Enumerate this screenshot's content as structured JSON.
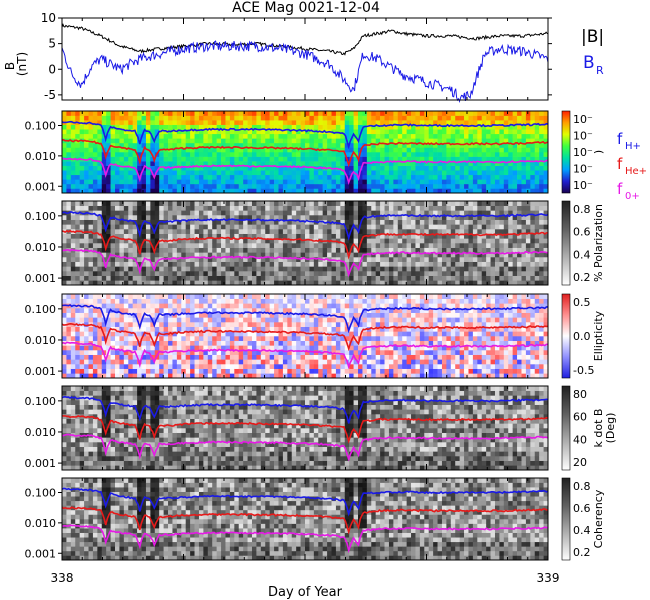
{
  "title": "ACE Mag 0021-12-04",
  "xlabel": "Day of Year",
  "x_ticks": [
    "338",
    "339"
  ],
  "chart_data": [
    {
      "type": "line",
      "panel": "magnetic-field",
      "ylabel": "B",
      "yunit": "(nT)",
      "ylim": [
        -6,
        10
      ],
      "y_ticks": [
        "10",
        "5",
        "0",
        "-5"
      ],
      "series": [
        {
          "name": "|B|",
          "color": "#000000",
          "x": [
            338.0,
            338.04,
            338.08,
            338.12,
            338.16,
            338.2,
            338.25,
            338.3,
            338.35,
            338.4,
            338.45,
            338.5,
            338.55,
            338.58,
            338.6,
            338.62,
            338.65,
            338.68,
            338.7,
            338.75,
            338.8,
            338.85,
            338.9,
            338.95,
            339.0
          ],
          "values": [
            8.5,
            8.0,
            6.5,
            4.5,
            3.5,
            4.0,
            4.5,
            5.0,
            4.8,
            5.0,
            4.5,
            4.0,
            3.5,
            3.0,
            4.0,
            6.5,
            7.0,
            7.5,
            7.0,
            6.5,
            6.5,
            6.0,
            6.5,
            6.5,
            7.0
          ]
        },
        {
          "name": "B_R",
          "color": "#1a1ae6",
          "x": [
            338.0,
            338.02,
            338.04,
            338.06,
            338.08,
            338.12,
            338.16,
            338.2,
            338.25,
            338.3,
            338.35,
            338.4,
            338.45,
            338.5,
            338.55,
            338.58,
            338.6,
            338.62,
            338.65,
            338.7,
            338.75,
            338.8,
            338.82,
            338.84,
            338.87,
            338.9,
            338.95,
            339.0
          ],
          "values": [
            4.0,
            -1.0,
            -3.0,
            0.5,
            2.0,
            0.0,
            2.0,
            3.0,
            4.0,
            4.5,
            4.5,
            4.5,
            4.0,
            3.0,
            1.0,
            -2.0,
            -4.0,
            3.0,
            2.0,
            -1.0,
            -2.5,
            -4.0,
            -5.5,
            -5.0,
            3.0,
            4.0,
            3.5,
            2.0
          ]
        }
      ]
    },
    {
      "type": "heatmap",
      "panel": "power-spectrum",
      "ylim": [
        0.0006,
        0.3
      ],
      "yscale": "log",
      "y_ticks": [
        "0.100",
        "0.010",
        "0.001"
      ],
      "colorbar_ticks": [
        "10⁻",
        "10⁻",
        "10⁻",
        "10⁻",
        "10⁻"
      ],
      "colorbar_label": ")",
      "colormap": "rainbow"
    },
    {
      "type": "heatmap",
      "panel": "polarization",
      "ylim": [
        0.0006,
        0.3
      ],
      "yscale": "log",
      "y_ticks": [
        "0.100",
        "0.010",
        "0.001"
      ],
      "colorbar_label": "% Polarization",
      "colorbar_ticks": [
        "0.8",
        "0.6",
        "0.4",
        "0.2"
      ],
      "colormap": "gray"
    },
    {
      "type": "heatmap",
      "panel": "ellipticity",
      "ylim": [
        0.0006,
        0.3
      ],
      "yscale": "log",
      "y_ticks": [
        "0.100",
        "0.010",
        "0.001"
      ],
      "colorbar_label": "Ellipticity",
      "colorbar_ticks": [
        "0.5",
        "0.0",
        "-0.5"
      ],
      "colormap": "blue-white-red"
    },
    {
      "type": "heatmap",
      "panel": "k-dot-b",
      "ylim": [
        0.0006,
        0.3
      ],
      "yscale": "log",
      "y_ticks": [
        "0.100",
        "0.010",
        "0.001"
      ],
      "colorbar_label": "k dot B",
      "colorbar_unit": "(Deg)",
      "colorbar_ticks": [
        "80",
        "60",
        "40",
        "20"
      ],
      "colormap": "gray"
    },
    {
      "type": "heatmap",
      "panel": "coherency",
      "ylim": [
        0.0006,
        0.3
      ],
      "yscale": "log",
      "y_ticks": [
        "0.100",
        "0.010",
        "0.001"
      ],
      "colorbar_label": "Coherency",
      "colorbar_ticks": [
        "0.8",
        "0.6",
        "0.4",
        "0.2"
      ],
      "colormap": "gray"
    }
  ],
  "legend_b": {
    "mag": "|B|",
    "br": "B",
    "br_sub": "R",
    "mag_color": "#000000",
    "br_color": "#1a1ae6"
  },
  "gyro_legend": [
    {
      "label": "f",
      "sub": "H+",
      "color": "#1a1ae6"
    },
    {
      "label": "f",
      "sub": "He+",
      "color": "#e61a1a"
    },
    {
      "label": "f",
      "sub": "0+",
      "color": "#e61ae6"
    }
  ],
  "gyrofrequency_lines": {
    "x": [
      338.0,
      338.06,
      338.08,
      338.09,
      338.1,
      338.12,
      338.15,
      338.16,
      338.17,
      338.18,
      338.19,
      338.2,
      338.22,
      338.25,
      338.3,
      338.35,
      338.4,
      338.45,
      338.5,
      338.55,
      338.58,
      338.59,
      338.6,
      338.61,
      338.62,
      338.65,
      338.7,
      338.75,
      338.8,
      338.85,
      338.9,
      338.95,
      339.0
    ],
    "fH": [
      0.13,
      0.12,
      0.1,
      0.035,
      0.09,
      0.075,
      0.065,
      0.025,
      0.07,
      0.06,
      0.03,
      0.065,
      0.065,
      0.07,
      0.075,
      0.075,
      0.074,
      0.072,
      0.068,
      0.062,
      0.055,
      0.02,
      0.05,
      0.03,
      0.09,
      0.1,
      0.105,
      0.1,
      0.1,
      0.1,
      0.1,
      0.105,
      0.11
    ],
    "fHe": [
      0.032,
      0.03,
      0.025,
      0.009,
      0.022,
      0.019,
      0.016,
      0.006,
      0.018,
      0.015,
      0.007,
      0.016,
      0.016,
      0.018,
      0.019,
      0.019,
      0.0185,
      0.018,
      0.017,
      0.0155,
      0.014,
      0.005,
      0.0125,
      0.0075,
      0.022,
      0.025,
      0.026,
      0.025,
      0.025,
      0.025,
      0.025,
      0.026,
      0.028
    ],
    "fO": [
      0.0081,
      0.0075,
      0.0063,
      0.0022,
      0.0056,
      0.0047,
      0.0041,
      0.0016,
      0.0044,
      0.0038,
      0.0019,
      0.0041,
      0.0041,
      0.0044,
      0.0047,
      0.0047,
      0.0046,
      0.0045,
      0.0043,
      0.0039,
      0.0034,
      0.0013,
      0.0031,
      0.0019,
      0.0056,
      0.0063,
      0.0066,
      0.0063,
      0.0063,
      0.0063,
      0.0063,
      0.0066,
      0.0069
    ]
  }
}
